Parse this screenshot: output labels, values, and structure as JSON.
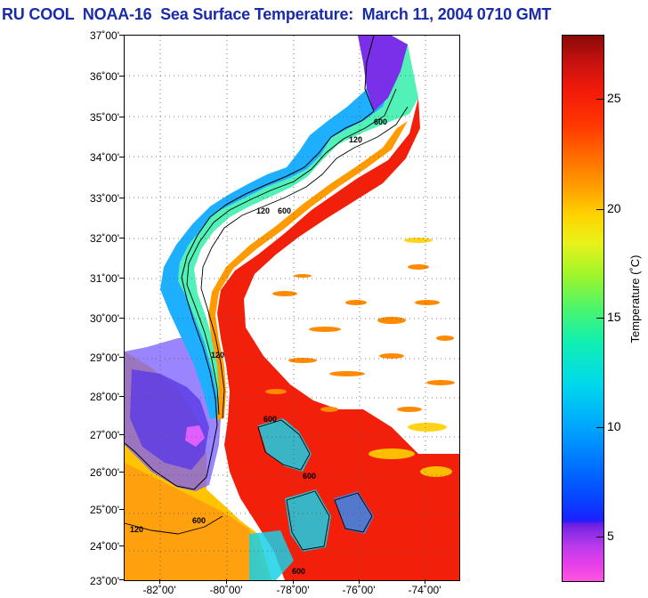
{
  "title": "RU COOL  NOAA-16  Sea Surface Temperature:  March 11, 2004 0710 GMT",
  "map": {
    "lat_labels": [
      "37˚00'",
      "36˚00'",
      "35˚00'",
      "34˚00'",
      "33˚00'",
      "32˚00'",
      "31˚00'",
      "30˚00'",
      "29˚00'",
      "28˚00'",
      "27˚00'",
      "26˚00'",
      "25˚00'",
      "24˚00'",
      "23˚00'"
    ],
    "lon_labels": [
      "-82˚00'",
      "-80˚00'",
      "-78˚00'",
      "-76˚00'",
      "-74˚00'"
    ],
    "contour_labels": [
      "120",
      "600",
      "120",
      "600",
      "120",
      "600",
      "600",
      "600",
      "600",
      "120"
    ]
  },
  "colorbar": {
    "tick_labels": [
      "25",
      "20",
      "15",
      "10",
      "5"
    ],
    "title": "Temperature (˚C)"
  }
}
